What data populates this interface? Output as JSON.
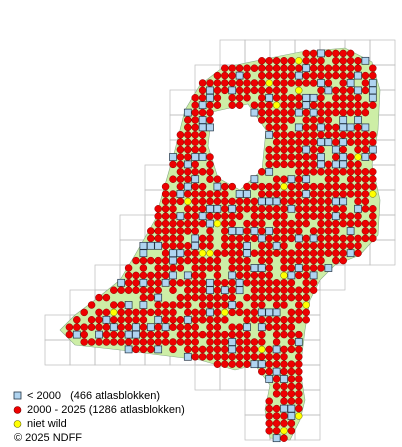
{
  "legend": [
    {
      "label": "< 2000   (466 atlasblokken)"
    },
    {
      "label": "2000 - 2025 (1286 atlasblokken)"
    },
    {
      "label": "niet wild"
    }
  ],
  "copyright": "© 2025 NDFF"
}
